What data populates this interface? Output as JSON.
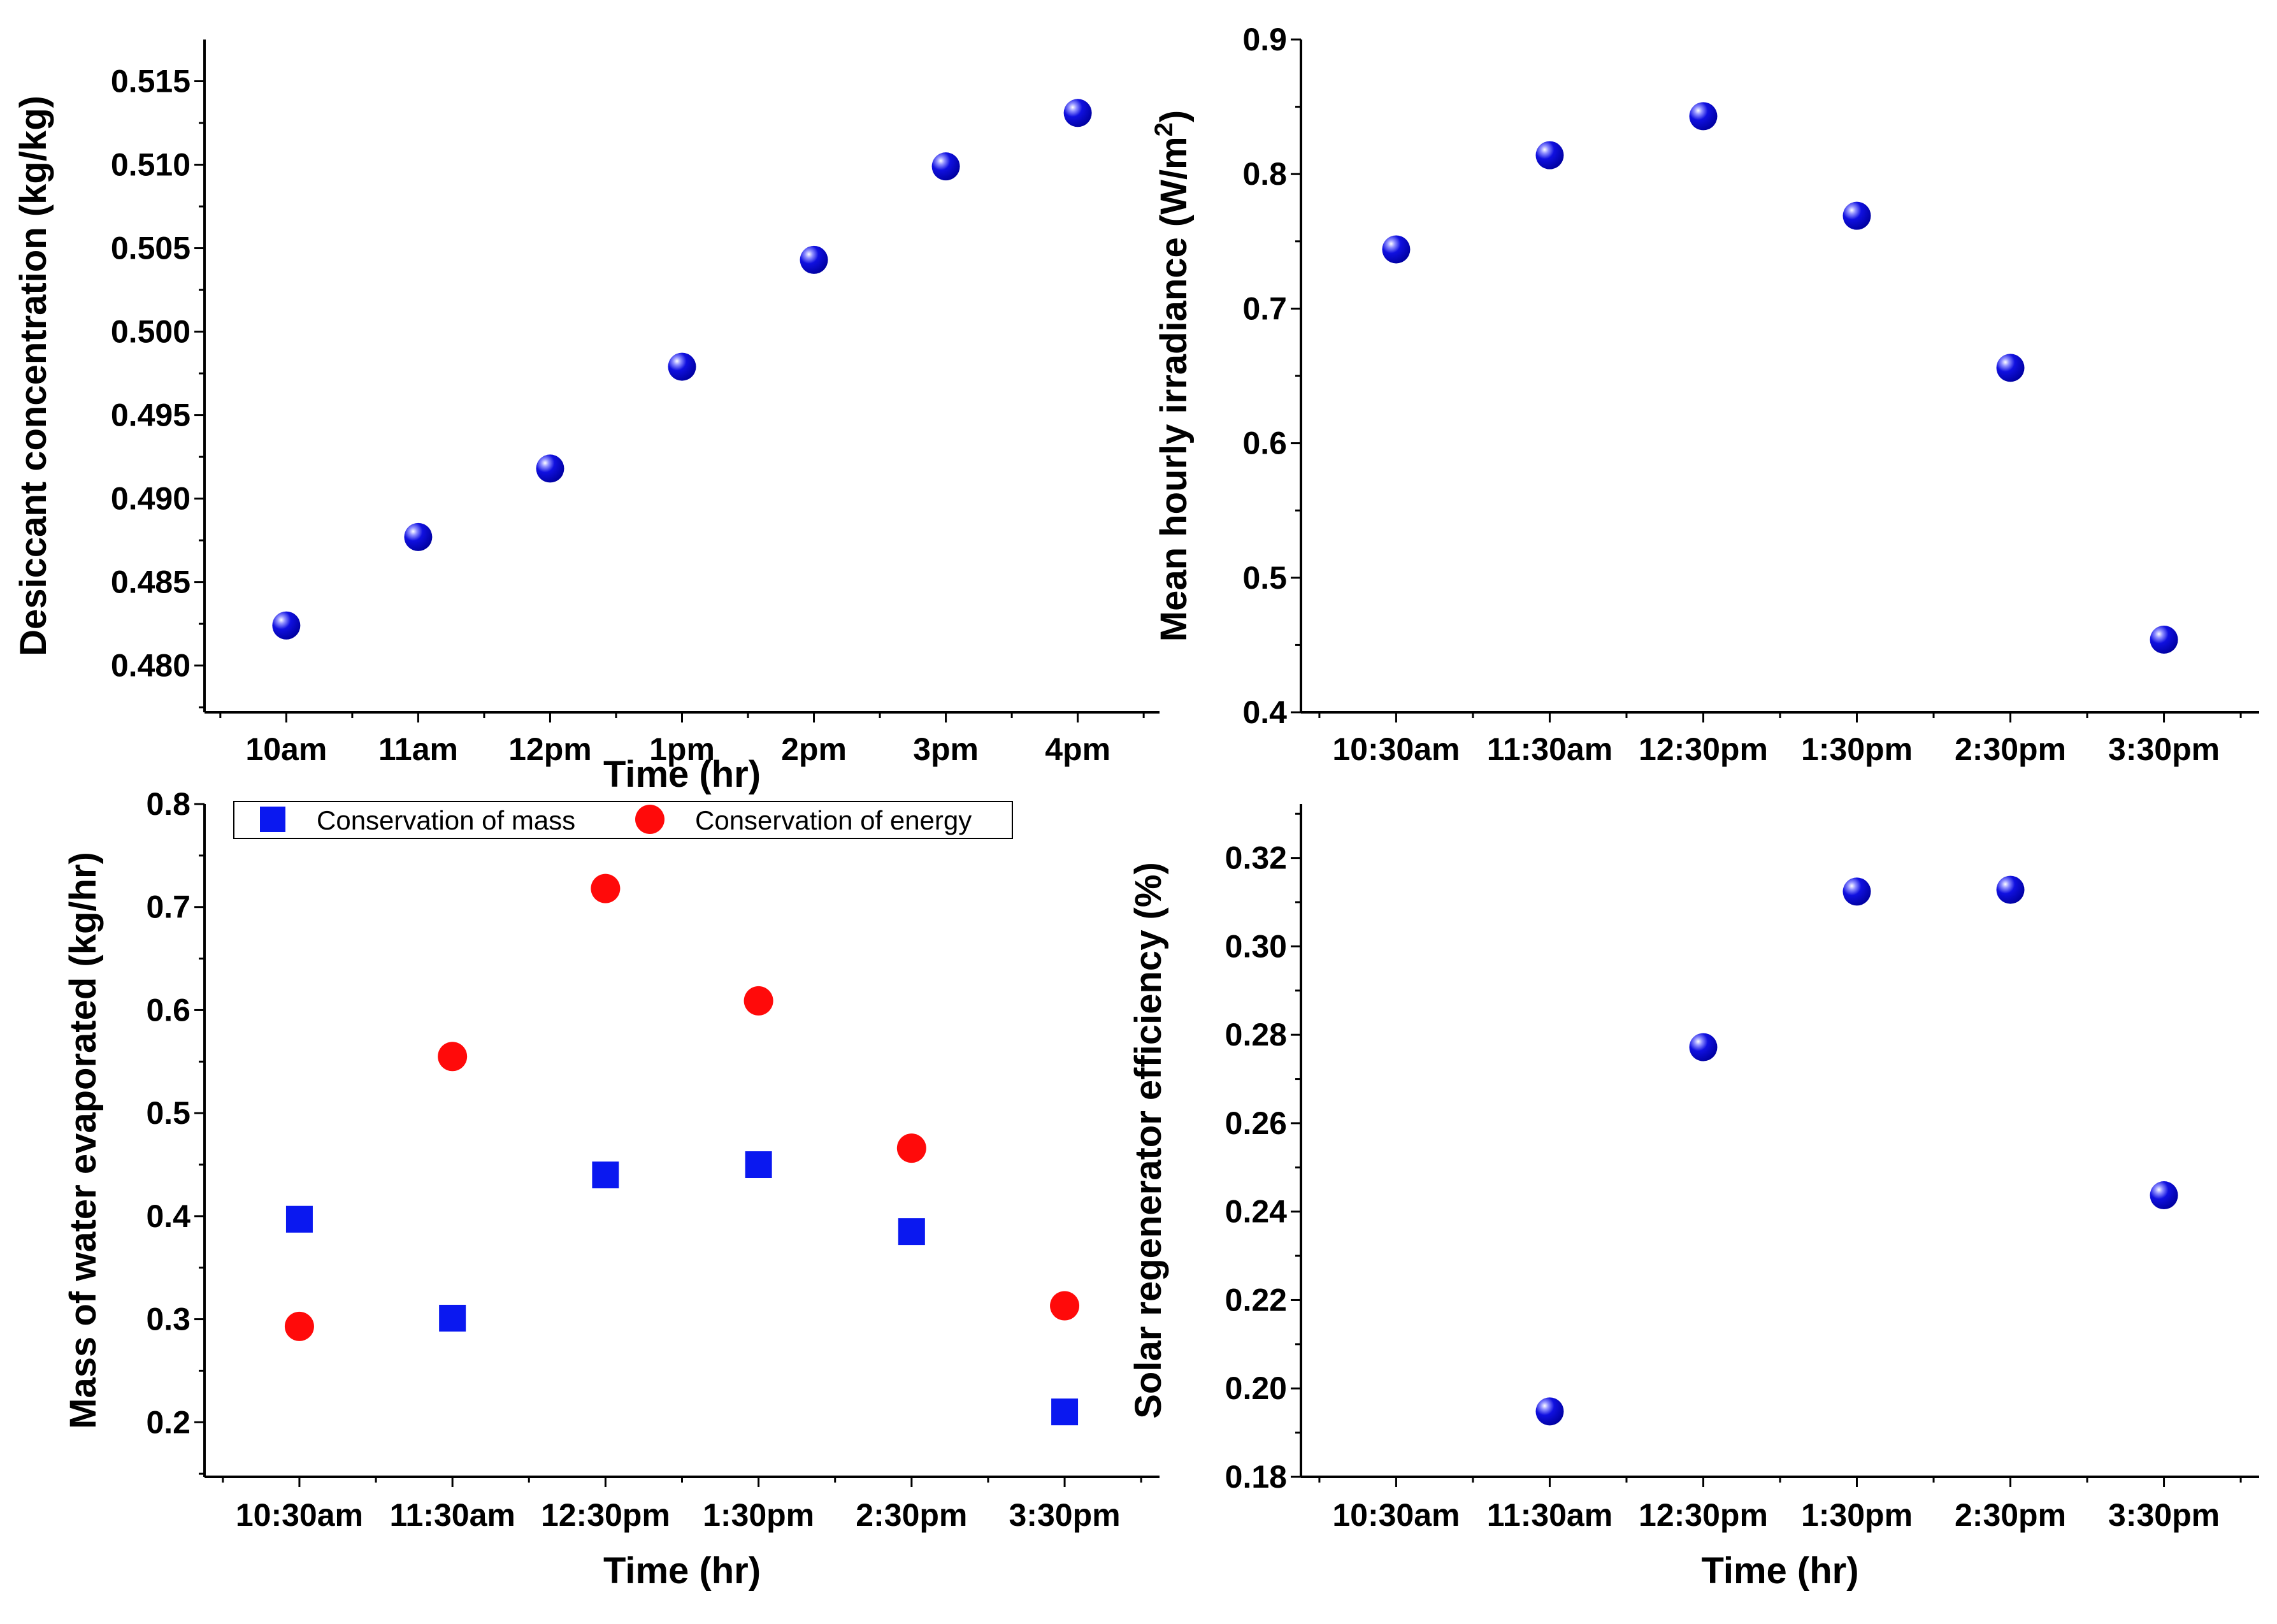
{
  "colors": {
    "sphere_main": "#1010e0",
    "sphere_dark": "#0000a0",
    "square_blue": "#0a18f0",
    "circle_red": "#ff0a0a",
    "axis": "#000000"
  },
  "chart_data": [
    {
      "id": "a",
      "type": "scatter",
      "marker": "sphere",
      "title": "",
      "xlabel": "Time (hr)",
      "ylabel": "Desiccant concentration (kg/kg)",
      "categories": [
        "10am",
        "11am",
        "12pm",
        "1pm",
        "2pm",
        "3pm",
        "4pm"
      ],
      "series": [
        {
          "name": "Desiccant concentration",
          "values": [
            0.4824,
            0.4877,
            0.4918,
            0.4979,
            0.5043,
            0.5099,
            0.5131
          ]
        }
      ],
      "ylim": [
        0.4772,
        0.5175
      ],
      "yticks": [
        {
          "v": 0.48,
          "label": "0.480"
        },
        {
          "v": 0.485,
          "label": "0.485"
        },
        {
          "v": 0.49,
          "label": "0.490"
        },
        {
          "v": 0.495,
          "label": "0.495"
        },
        {
          "v": 0.5,
          "label": "0.500"
        },
        {
          "v": 0.505,
          "label": "0.505"
        },
        {
          "v": 0.51,
          "label": "0.510"
        },
        {
          "v": 0.515,
          "label": "0.515"
        }
      ]
    },
    {
      "id": "b",
      "type": "scatter",
      "marker": "sphere",
      "title": "",
      "xlabel": "",
      "ylabel_main": "Mean hourly irradiance (W/m",
      "ylabel_sup": "2",
      "ylabel_end": ")",
      "categories": [
        "10:30am",
        "11:30am",
        "12:30pm",
        "1:30pm",
        "2:30pm",
        "3:30pm"
      ],
      "series": [
        {
          "name": "Mean hourly irradiance",
          "values": [
            0.744,
            0.814,
            0.843,
            0.769,
            0.656,
            0.454
          ]
        }
      ],
      "ylim": [
        0.4,
        0.9
      ],
      "yticks": [
        {
          "v": 0.4,
          "label": "0.4"
        },
        {
          "v": 0.5,
          "label": "0.5"
        },
        {
          "v": 0.6,
          "label": "0.6"
        },
        {
          "v": 0.7,
          "label": "0.7"
        },
        {
          "v": 0.8,
          "label": "0.8"
        },
        {
          "v": 0.9,
          "label": "0.9"
        }
      ]
    },
    {
      "id": "c",
      "type": "scatter",
      "title": "",
      "xlabel": "Time (hr)",
      "ylabel": "Mass of water evaporated (kg/hr)",
      "categories": [
        "10:30am",
        "11:30am",
        "12:30pm",
        "1:30pm",
        "2:30pm",
        "3:30pm"
      ],
      "legend_position": "top",
      "series": [
        {
          "name": "Conservation of mass",
          "marker": "square",
          "values": [
            0.397,
            0.301,
            0.44,
            0.45,
            0.385,
            0.21
          ]
        },
        {
          "name": "Conservation of energy",
          "marker": "circle",
          "values": [
            0.293,
            0.555,
            0.718,
            0.609,
            0.466,
            0.313
          ]
        }
      ],
      "ylim": [
        0.147,
        0.8
      ],
      "yticks": [
        {
          "v": 0.2,
          "label": "0.2"
        },
        {
          "v": 0.3,
          "label": "0.3"
        },
        {
          "v": 0.4,
          "label": "0.4"
        },
        {
          "v": 0.5,
          "label": "0.5"
        },
        {
          "v": 0.6,
          "label": "0.6"
        },
        {
          "v": 0.7,
          "label": "0.7"
        },
        {
          "v": 0.8,
          "label": "0.8"
        }
      ]
    },
    {
      "id": "d",
      "type": "scatter",
      "marker": "sphere",
      "title": "",
      "xlabel": "Time (hr)",
      "ylabel": "Solar regenerator efficiency (%)",
      "categories": [
        "10:30am",
        "11:30am",
        "12:30pm",
        "1:30pm",
        "2:30pm",
        "3:30pm"
      ],
      "series": [
        {
          "name": "Solar regenerator efficiency",
          "values": [
            null,
            0.1948,
            0.2772,
            0.3124,
            0.3128,
            0.2437
          ]
        }
      ],
      "ylim": [
        0.18,
        0.3322
      ],
      "yticks": [
        {
          "v": 0.18,
          "label": "0.18"
        },
        {
          "v": 0.2,
          "label": "0.20"
        },
        {
          "v": 0.22,
          "label": "0.22"
        },
        {
          "v": 0.24,
          "label": "0.24"
        },
        {
          "v": 0.26,
          "label": "0.26"
        },
        {
          "v": 0.28,
          "label": "0.28"
        },
        {
          "v": 0.3,
          "label": "0.30"
        },
        {
          "v": 0.32,
          "label": "0.32"
        }
      ]
    }
  ]
}
